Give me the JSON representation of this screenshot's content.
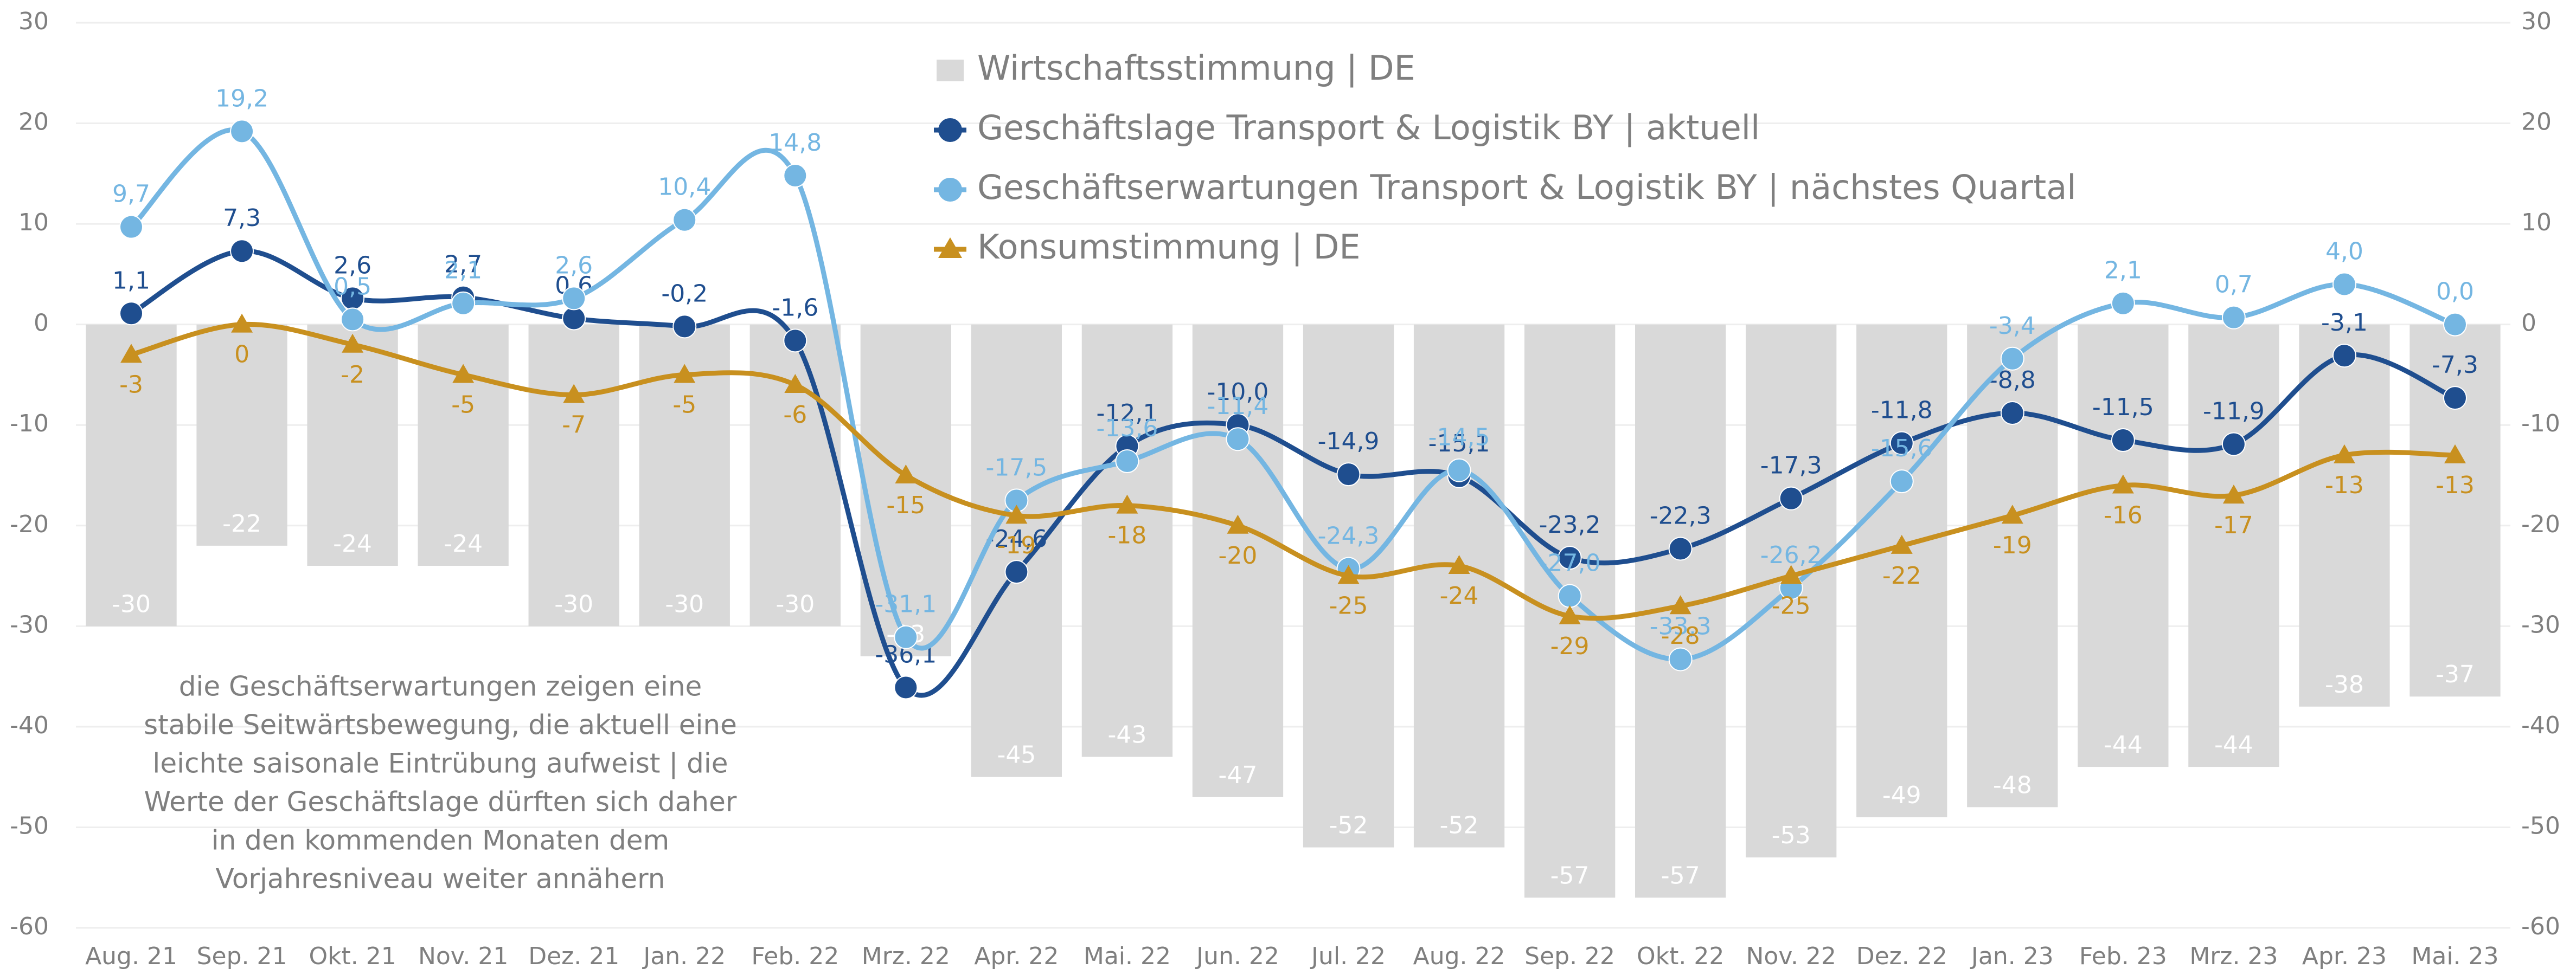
{
  "chart_data": {
    "type": "bar_line",
    "categories": [
      "Aug. 21",
      "Sep. 21",
      "Okt. 21",
      "Nov. 21",
      "Dez. 21",
      "Jan. 22",
      "Feb. 22",
      "Mrz. 22",
      "Apr. 22",
      "Mai. 22",
      "Jun. 22",
      "Jul. 22",
      "Aug. 22",
      "Sep. 22",
      "Okt. 22",
      "Nov. 22",
      "Dez. 22",
      "Jan. 23",
      "Feb. 23",
      "Mrz. 23",
      "Apr. 23",
      "Mai. 23"
    ],
    "series": [
      {
        "name": "Wirtschaftsstimmung | DE",
        "type": "bar",
        "color": "#d9d9d9",
        "values": [
          -30,
          -22,
          -24,
          -24,
          -30,
          -30,
          -30,
          -33,
          -45,
          -43,
          -47,
          -52,
          -52,
          -57,
          -57,
          -53,
          -49,
          -48,
          -44,
          -44,
          -38,
          -37
        ]
      },
      {
        "name": "Geschäftslage Transport & Logistik BY | aktuell",
        "type": "line",
        "marker": "circle",
        "color": "#1f4e8f",
        "values": [
          1.1,
          7.3,
          2.6,
          2.7,
          0.6,
          -0.2,
          -1.6,
          -36.1,
          -24.6,
          -12.1,
          -10.0,
          -14.9,
          -15.1,
          -23.2,
          -22.3,
          -17.3,
          -11.8,
          -8.8,
          -11.5,
          -11.9,
          -3.1,
          -7.3
        ],
        "value_labels": [
          "1,1",
          "7,3",
          "2,6",
          "2,7",
          "0,6",
          "-0,2",
          "-1,6",
          "-36,1",
          "-24,6",
          "-12,1",
          "-10,0",
          "-14,9",
          "-15,1",
          "-23,2",
          "-22,3",
          "-17,3",
          "-11,8",
          "-8,8",
          "-11,5",
          "-11,9",
          "-3,1",
          "-7,3"
        ]
      },
      {
        "name": "Geschäftserwartungen Transport & Logistik BY | nächstes Quartal",
        "type": "line",
        "marker": "circle",
        "color": "#74b6e2",
        "values": [
          9.7,
          19.2,
          0.5,
          2.1,
          2.6,
          10.4,
          14.8,
          -31.1,
          -17.5,
          -13.6,
          -11.4,
          -24.3,
          -14.5,
          -27.0,
          -33.3,
          -26.2,
          -15.6,
          -3.4,
          2.1,
          0.7,
          4.0,
          0.0
        ],
        "value_labels": [
          "9,7",
          "19,2",
          "0,5",
          "2,1",
          "2,6",
          "10,4",
          "14,8",
          "-31,1",
          "-17,5",
          "-13,6",
          "-11,4",
          "-24,3",
          "-14,5",
          "-27,0",
          "-33,3",
          "-26,2",
          "-15,6",
          "-3,4",
          "2,1",
          "0,7",
          "4,0",
          "0,0"
        ]
      },
      {
        "name": "Konsumstimmung | DE",
        "type": "line",
        "marker": "triangle",
        "color": "#c8901f",
        "values": [
          -3,
          0,
          -2,
          -5,
          -7,
          -5,
          -6,
          -15,
          -19,
          -18,
          -20,
          -25,
          -24,
          -29,
          -28,
          -25,
          -22,
          -19,
          -16,
          -17,
          -13,
          -13
        ]
      }
    ],
    "ylim": [
      -60,
      30
    ],
    "yticks": [
      -60,
      -50,
      -40,
      -30,
      -20,
      -10,
      0,
      10,
      20,
      30
    ],
    "y2lim": [
      -60,
      30
    ],
    "y2ticks": [
      -60,
      -50,
      -40,
      -30,
      -20,
      -10,
      0,
      10,
      20,
      30
    ],
    "grid": true,
    "legend": "top",
    "annotation": [
      "die Geschäftserwartungen zeigen eine",
      "stabile Seitwärtsbewegung, die aktuell eine",
      "leichte saisonale Eintrübung aufweist | die",
      "Werte der Geschäftslage dürften sich daher",
      "in den kommenden Monaten dem",
      "Vorjahresniveau weiter annähern"
    ]
  }
}
